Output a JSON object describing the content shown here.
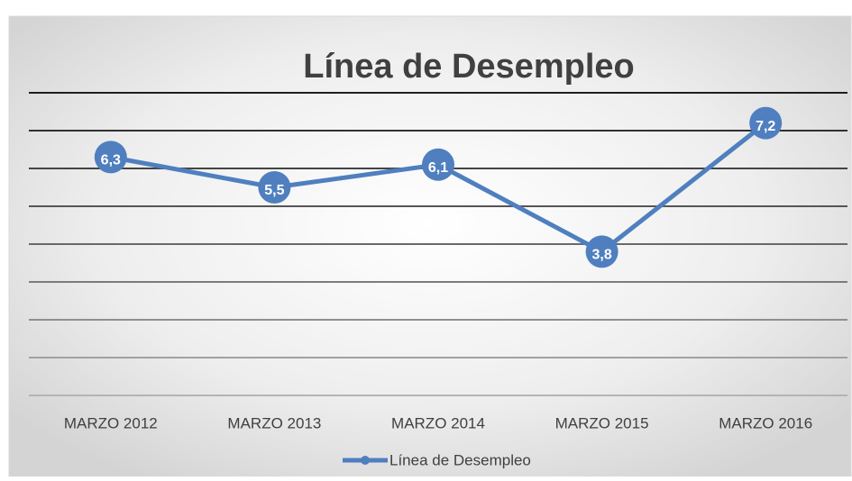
{
  "chart_data": {
    "type": "line",
    "title": "Línea de Desempleo",
    "categories": [
      "MARZO 2012",
      "MARZO 2013",
      "MARZO 2014",
      "MARZO 2015",
      "MARZO 2016"
    ],
    "series": [
      {
        "name": "Línea de Desempleo",
        "color": "#4f7fbf",
        "values": [
          6.3,
          5.5,
          6.1,
          3.8,
          7.2
        ],
        "value_labels": [
          "6,3",
          "5,5",
          "6,1",
          "3,8",
          "7,2"
        ]
      }
    ],
    "ylim": [
      0,
      8
    ],
    "yticks": [
      0,
      1,
      2,
      3,
      4,
      5,
      6,
      7,
      8
    ],
    "grid": true,
    "legend": "bottom"
  }
}
